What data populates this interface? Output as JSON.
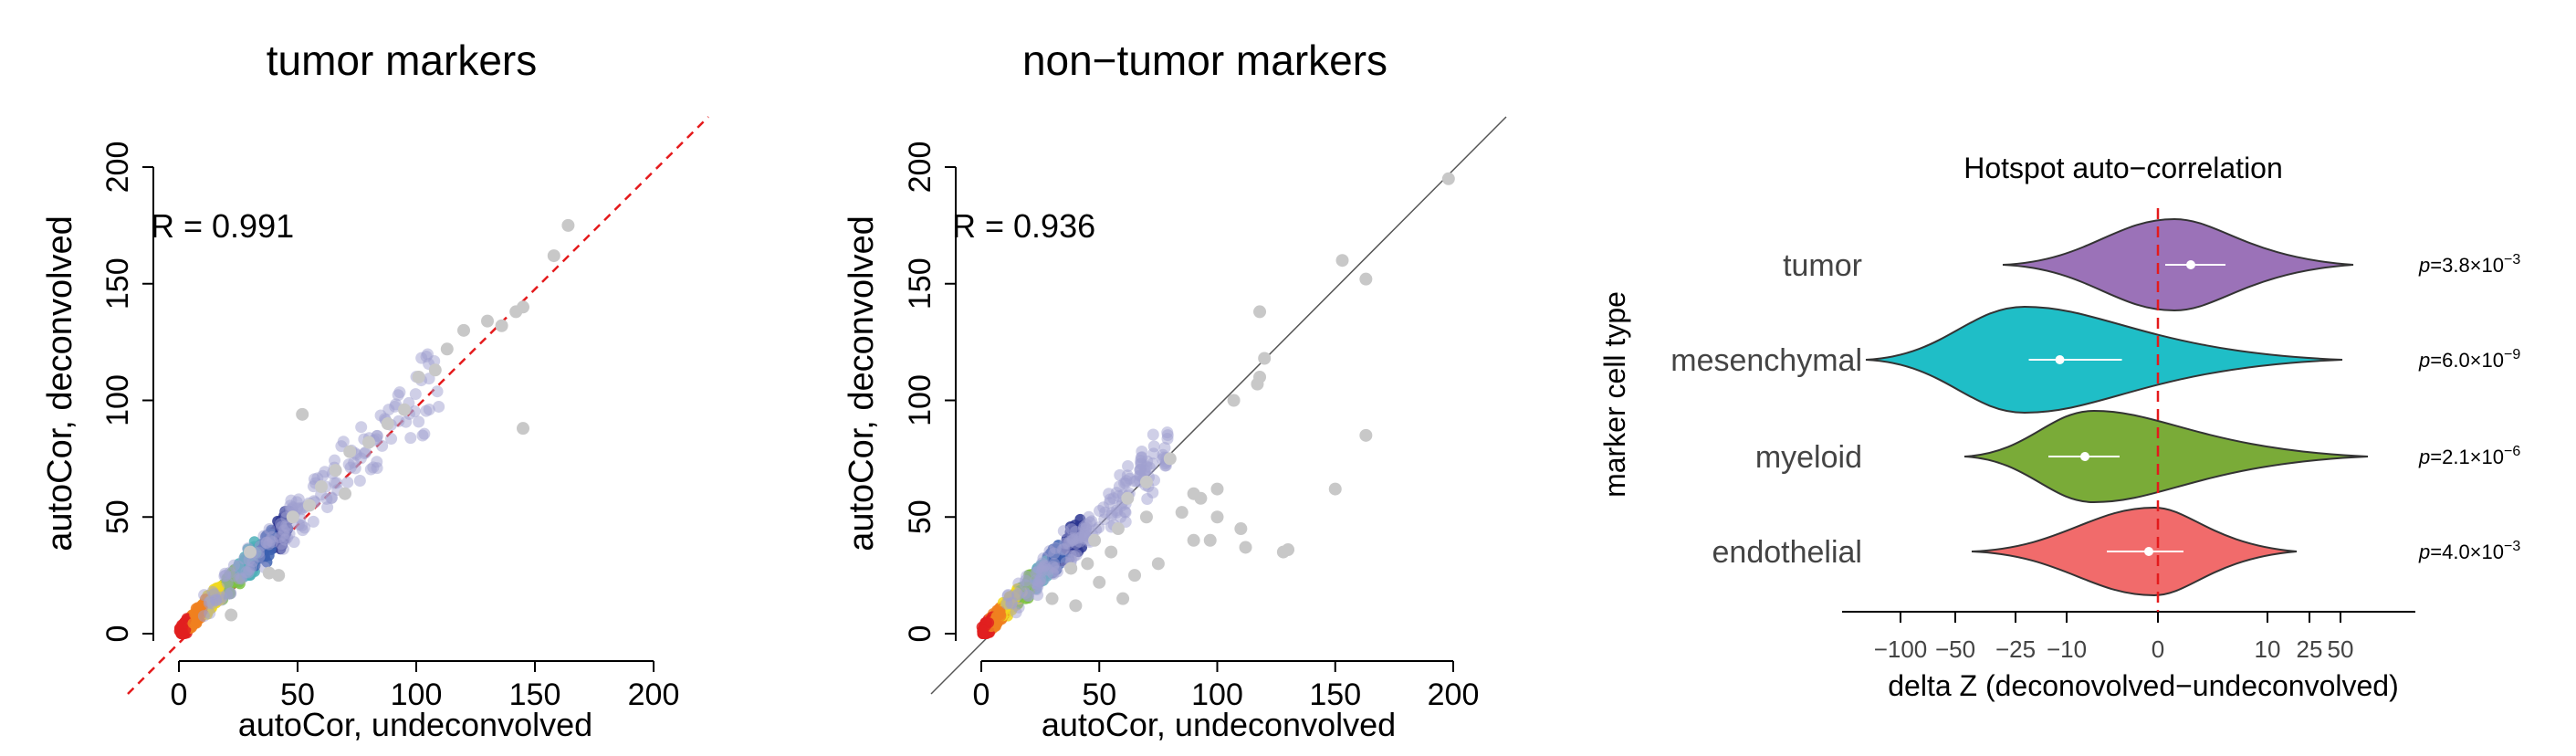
{
  "chart_data": [
    {
      "type": "scatter",
      "title": "tumor markers",
      "xlabel": "autoCor, undeconvolved",
      "ylabel": "autoCor, deconvolved",
      "annotation": "R = 0.991",
      "xlim": [
        0,
        200
      ],
      "ylim": [
        0,
        200
      ],
      "xticks": [
        "0",
        "50",
        "100",
        "150",
        "200"
      ],
      "yticks": [
        "0",
        "50",
        "100",
        "150",
        "200"
      ],
      "reference_line": {
        "style": "dashed",
        "color": "#e41a1c",
        "slope": 1
      },
      "outliers": [
        [
          164,
          175
        ],
        [
          158,
          162
        ],
        [
          145,
          140
        ],
        [
          142,
          138
        ],
        [
          136,
          132
        ],
        [
          130,
          134
        ],
        [
          120,
          130
        ],
        [
          113,
          122
        ],
        [
          108,
          113
        ],
        [
          101,
          110
        ],
        [
          95,
          96
        ],
        [
          88,
          90
        ],
        [
          52,
          94
        ],
        [
          145,
          88
        ],
        [
          80,
          82
        ],
        [
          72,
          78
        ],
        [
          66,
          70
        ],
        [
          60,
          63
        ],
        [
          55,
          55
        ],
        [
          48,
          50
        ],
        [
          70,
          60
        ],
        [
          42,
          25
        ],
        [
          22,
          8
        ],
        [
          38,
          26
        ],
        [
          30,
          35
        ]
      ],
      "density_colors": [
        "#2c3590",
        "#3c60b0",
        "#4fb0b8",
        "#7cc242",
        "#f0d820",
        "#f08020",
        "#e02020"
      ]
    },
    {
      "type": "scatter",
      "title": "non−tumor markers",
      "xlabel": "autoCor, undeconvolved",
      "ylabel": "autoCor, deconvolved",
      "annotation": "R = 0.936",
      "xlim": [
        0,
        200
      ],
      "ylim": [
        0,
        200
      ],
      "xticks": [
        "0",
        "50",
        "100",
        "150",
        "200"
      ],
      "yticks": [
        "0",
        "50",
        "100",
        "150",
        "200"
      ],
      "reference_line": {
        "style": "solid",
        "color": "#555555",
        "slope": 1
      },
      "outliers": [
        [
          198,
          195
        ],
        [
          153,
          160
        ],
        [
          163,
          152
        ],
        [
          118,
          138
        ],
        [
          120,
          118
        ],
        [
          118,
          110
        ],
        [
          117,
          107
        ],
        [
          107,
          100
        ],
        [
          163,
          85
        ],
        [
          128,
          35
        ],
        [
          112,
          37
        ],
        [
          97,
          40
        ],
        [
          85,
          52
        ],
        [
          90,
          40
        ],
        [
          80,
          75
        ],
        [
          70,
          65
        ],
        [
          62,
          58
        ],
        [
          110,
          45
        ],
        [
          75,
          30
        ],
        [
          55,
          35
        ],
        [
          45,
          30
        ],
        [
          50,
          22
        ],
        [
          60,
          15
        ],
        [
          40,
          12
        ],
        [
          30,
          15
        ],
        [
          70,
          50
        ],
        [
          58,
          45
        ],
        [
          90,
          60
        ],
        [
          100,
          62
        ],
        [
          93,
          58
        ],
        [
          65,
          25
        ],
        [
          48,
          40
        ],
        [
          38,
          28
        ],
        [
          100,
          50
        ],
        [
          130,
          36
        ],
        [
          150,
          62
        ]
      ],
      "density_colors": [
        "#2c3590",
        "#3c60b0",
        "#4fb0b8",
        "#7cc242",
        "#f0d820",
        "#f08020",
        "#e02020"
      ]
    },
    {
      "type": "violin",
      "title": "Hotspot auto−correlation",
      "xlabel": "delta Z (deconovolved−undeconvolved)",
      "ylabel": "marker cell type",
      "xticks": [
        "−100",
        "−50",
        "−25",
        "−10",
        "0",
        "10",
        "25",
        "50"
      ],
      "categories": [
        "tumor",
        "mesenchymal",
        "myeloid",
        "endothelial"
      ],
      "colors": [
        "#9b72b8",
        "#1fbec7",
        "#7aab38",
        "#f16b6b"
      ],
      "median": [
        3,
        -12,
        -8,
        -1
      ],
      "pvalues": [
        {
          "mant": "3.8",
          "exp": "−3"
        },
        {
          "mant": "6.0",
          "exp": "−9"
        },
        {
          "mant": "2.1",
          "exp": "−6"
        },
        {
          "mant": "4.0",
          "exp": "−3"
        }
      ],
      "p_prefix": "p",
      "reference_line": {
        "style": "dashed",
        "color": "#e41a1c",
        "x": 0
      }
    }
  ]
}
